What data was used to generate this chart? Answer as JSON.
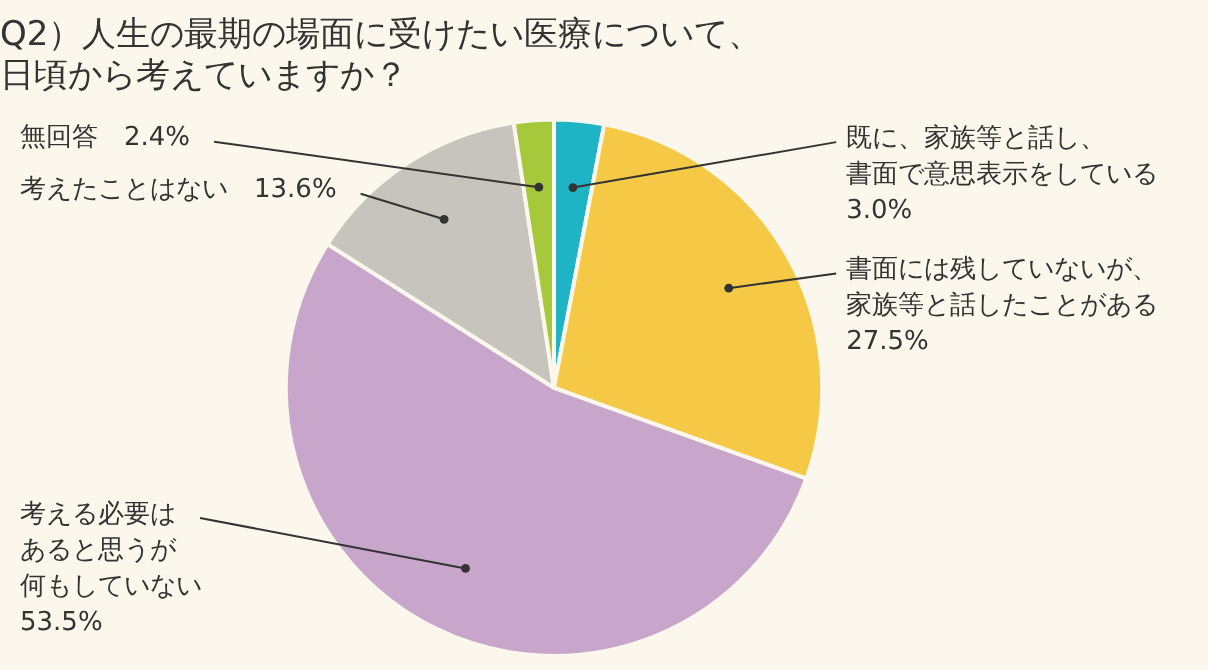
{
  "chart_data": {
    "type": "pie",
    "title": "Q2）人生の最期の場面に受けたい医療について、日頃から考えていますか？",
    "categories": [
      "既に、家族等と話し、書面で意思表示をしている",
      "書面には残していないが、家族等と話したことがある",
      "考える必要はあると思うが何もしていない",
      "考えたことはない",
      "無回答"
    ],
    "values": [
      3.0,
      27.5,
      53.5,
      13.6,
      2.4
    ],
    "colors": [
      "#1fb3c6",
      "#f5c945",
      "#c8a6cb",
      "#c6c4bc",
      "#a5c93a"
    ],
    "value_labels": [
      "3.0%",
      "27.5%",
      "53.5%",
      "13.6%",
      "2.4%"
    ]
  }
}
